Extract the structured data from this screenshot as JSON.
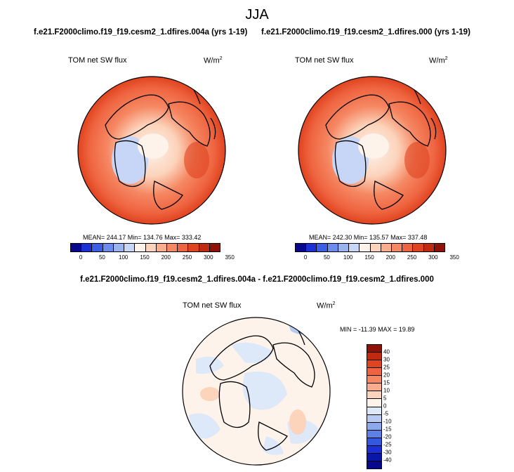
{
  "main_title": "JJA",
  "panels": [
    {
      "case": "f.e21.F2000climo.f19_f19.cesm2_1.dfires.004a (yrs 1-19)",
      "var_label": "TOM net SW flux",
      "unit": "W/m",
      "unit_sup": "2",
      "stats": "MEAN= 244.17  Min= 134.76  Max= 333.42"
    },
    {
      "case": "f.e21.F2000climo.f19_f19.cesm2_1.dfires.000 (yrs 1-19)",
      "var_label": "TOM net SW flux",
      "unit": "W/m",
      "unit_sup": "2",
      "stats": "MEAN= 242.30  Min= 135.57  Max= 337.48"
    }
  ],
  "colorbar_abs": {
    "colors": [
      "#08088e",
      "#1a2fd6",
      "#3a5fe6",
      "#6b8bed",
      "#99b2f0",
      "#c7d6f6",
      "#fdf3ea",
      "#fcd3bb",
      "#f9ad8c",
      "#f58863",
      "#ef6440",
      "#e0431f",
      "#c02b10",
      "#8e1206"
    ],
    "ticks": [
      "0",
      "50",
      "100",
      "150",
      "200",
      "250",
      "300",
      "350"
    ]
  },
  "diff": {
    "title": "f.e21.F2000climo.f19_f19.cesm2_1.dfires.004a - f.e21.F2000climo.f19_f19.cesm2_1.dfires.000",
    "var_label": "TOM net SW flux",
    "unit": "W/m",
    "unit_sup": "2",
    "stats": "MIN = -11.39  MAX =  19.89",
    "colorbar": {
      "colors": [
        "#8e1206",
        "#c02b10",
        "#e0431f",
        "#ef6440",
        "#f58863",
        "#f9ad8c",
        "#fcd3bb",
        "#fdf3ea",
        "#dde8f8",
        "#b7caf2",
        "#8da9ec",
        "#5c80e6",
        "#3358dd",
        "#1a2fd6",
        "#0a16a8",
        "#08088e"
      ],
      "ticks": [
        "40",
        "30",
        "25",
        "20",
        "15",
        "10",
        "5",
        "0",
        "-5",
        "-10",
        "-15",
        "-20",
        "-25",
        "-30",
        "-40"
      ]
    }
  }
}
